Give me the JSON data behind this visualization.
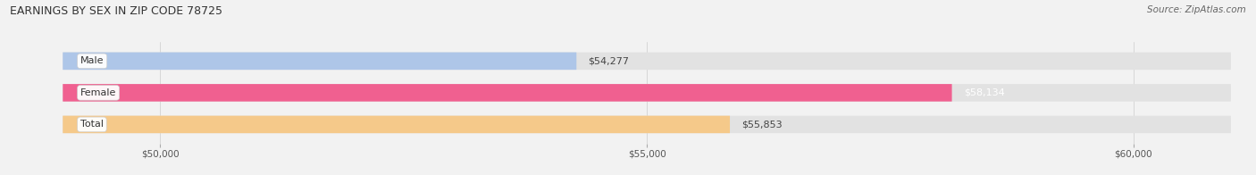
{
  "title": "EARNINGS BY SEX IN ZIP CODE 78725",
  "source": "Source: ZipAtlas.com",
  "categories": [
    "Male",
    "Female",
    "Total"
  ],
  "values": [
    54277,
    58134,
    55853
  ],
  "bar_colors": [
    "#aec6e8",
    "#f06090",
    "#f5c98a"
  ],
  "label_colors": [
    "#444444",
    "#ffffff",
    "#444444"
  ],
  "value_labels": [
    "$54,277",
    "$58,134",
    "$55,853"
  ],
  "xmin": 49000,
  "xmax": 61000,
  "xticks": [
    50000,
    55000,
    60000
  ],
  "xtick_labels": [
    "$50,000",
    "$55,000",
    "$60,000"
  ],
  "bg_color": "#f2f2f2",
  "bar_bg_color": "#e2e2e2",
  "title_fontsize": 9,
  "source_fontsize": 7.5,
  "label_fontsize": 8,
  "value_fontsize": 8
}
